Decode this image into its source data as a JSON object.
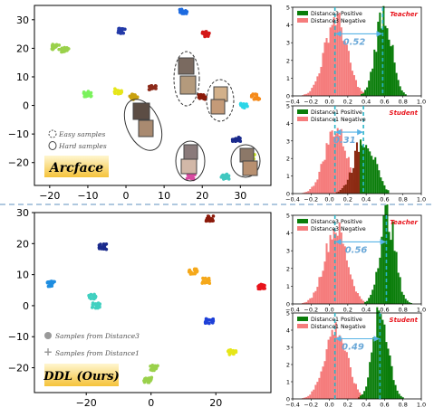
{
  "colors": {
    "teacher": "#e8131b",
    "student": "#e8131b",
    "positive": "#0a7d0a",
    "negative": "#f57c7c",
    "overlap": "#8b2a12",
    "dashline": "#2bb5c8",
    "arrow": "#57b3e6",
    "gapnum": "#6aa8d8",
    "divider": "#7fa6cc",
    "badge_top": "#fff3c4",
    "badge_bottom": "#f7c843"
  },
  "top_scatter": {
    "badge": "Arcface",
    "legend": [
      "Easy samples",
      "Hard samples"
    ],
    "xticks": [
      "−20",
      "−10",
      "0",
      "10",
      "20",
      "30"
    ],
    "yticks": [
      "30",
      "20",
      "10",
      "0",
      "−10",
      "−20"
    ]
  },
  "bottom_scatter": {
    "badge": "DDL (Ours)",
    "legend": [
      "Samples from Distance3",
      "Samples from Distance1"
    ],
    "xticks": [
      "−20",
      "0",
      "20"
    ],
    "yticks": [
      "30",
      "20",
      "10",
      "0",
      "−10",
      "−20"
    ]
  },
  "hist_xticks": [
    "−0.4",
    "−0.2",
    "0.0",
    "0.2",
    "0.4",
    "0.6",
    "0.8",
    "1.0"
  ],
  "hist_yticks": [
    "0",
    "1",
    "2",
    "3",
    "4",
    "5"
  ],
  "chart_data": [
    {
      "type": "scatter",
      "title": "",
      "badge": "Arcface",
      "xlim": [
        -24,
        38
      ],
      "ylim": [
        -28,
        35
      ],
      "legend": [
        "Easy samples",
        "Hard samples"
      ],
      "clusters": [
        {
          "x": -18.5,
          "y": 20.5,
          "color": "#9ad14b"
        },
        {
          "x": -16,
          "y": 19.5,
          "color": "#9ad14b"
        },
        {
          "x": -10,
          "y": 4,
          "color": "#7af25c"
        },
        {
          "x": -1,
          "y": 26,
          "color": "#233aa8"
        },
        {
          "x": -2,
          "y": 5,
          "color": "#e6e619"
        },
        {
          "x": 2,
          "y": 3,
          "color": "#c9a10f"
        },
        {
          "x": 7,
          "y": 6,
          "color": "#8c2a1a"
        },
        {
          "x": 15,
          "y": 33,
          "color": "#1e6be0"
        },
        {
          "x": 21,
          "y": 25,
          "color": "#d41717"
        },
        {
          "x": 34,
          "y": 3,
          "color": "#f58a1a"
        },
        {
          "x": 31,
          "y": 0,
          "color": "#2ad6e8"
        },
        {
          "x": 29,
          "y": -12,
          "color": "#1a2a8c"
        },
        {
          "x": 33,
          "y": -18,
          "color": "#c8e61a"
        },
        {
          "x": 26,
          "y": -25,
          "color": "#40c8c0"
        },
        {
          "x": 17,
          "y": -25,
          "color": "#d84aa0"
        },
        {
          "x": 20,
          "y": 3,
          "color": "#8b1a0a"
        }
      ]
    },
    {
      "type": "bar",
      "panel": "Teacher",
      "series": [
        {
          "name": "Distance3 Positive"
        },
        {
          "name": "Distance3 Negative"
        }
      ],
      "gap": "0.52",
      "negative_mean": 0.06,
      "positive_mean": 0.58,
      "negative_peak": 4.4,
      "positive_peak": 4.8,
      "xlim": [
        -0.4,
        1.0
      ],
      "ylim": [
        0,
        5
      ]
    },
    {
      "type": "bar",
      "panel": "Student",
      "series": [
        {
          "name": "Distance1 Positive"
        },
        {
          "name": "Distance1 Negative"
        }
      ],
      "gap": "0.31",
      "negative_mean": 0.06,
      "positive_mean": 0.37,
      "negative_peak": 3.7,
      "positive_peak": 3.2,
      "xlim": [
        -0.4,
        1.0
      ],
      "ylim": [
        0,
        5
      ]
    },
    {
      "type": "scatter",
      "badge": "DDL (Ours)",
      "xlim": [
        -36,
        37
      ],
      "ylim": [
        -28,
        30
      ],
      "legend": [
        "Samples from Distance3",
        "Samples from Distance1"
      ],
      "clusters": [
        {
          "x": -15,
          "y": 19,
          "color": "#1a2a8c"
        },
        {
          "x": -31,
          "y": 7,
          "color": "#1e8de0"
        },
        {
          "x": -18,
          "y": 3,
          "color": "#40d0c0"
        },
        {
          "x": -17,
          "y": 0,
          "color": "#40d0c0"
        },
        {
          "x": 1,
          "y": -20,
          "color": "#9ad14b"
        },
        {
          "x": -1,
          "y": -24,
          "color": "#9ad14b"
        },
        {
          "x": 18,
          "y": 28,
          "color": "#8b1a0a"
        },
        {
          "x": 13,
          "y": 11,
          "color": "#f5a81a"
        },
        {
          "x": 17,
          "y": 8,
          "color": "#f5a81a"
        },
        {
          "x": 18,
          "y": -5,
          "color": "#1e40d8"
        },
        {
          "x": 34,
          "y": 6,
          "color": "#e8131b"
        },
        {
          "x": 25,
          "y": -15,
          "color": "#e6e619"
        }
      ]
    },
    {
      "type": "bar",
      "panel": "Teacher",
      "series": [
        {
          "name": "Distance3 Positive"
        },
        {
          "name": "Distance3 Negative"
        }
      ],
      "gap": "0.56",
      "negative_mean": 0.06,
      "positive_mean": 0.62,
      "negative_peak": 4.3,
      "positive_peak": 5.0,
      "xlim": [
        -0.4,
        1.0
      ],
      "ylim": [
        0,
        5
      ]
    },
    {
      "type": "bar",
      "panel": "Student",
      "series": [
        {
          "name": "Distance1 Positive"
        },
        {
          "name": "Distance1 Negative"
        }
      ],
      "gap": "0.49",
      "negative_mean": 0.06,
      "positive_mean": 0.55,
      "negative_peak": 4.1,
      "positive_peak": 5.0,
      "xlim": [
        -0.4,
        1.0
      ],
      "ylim": [
        0,
        5
      ]
    }
  ]
}
